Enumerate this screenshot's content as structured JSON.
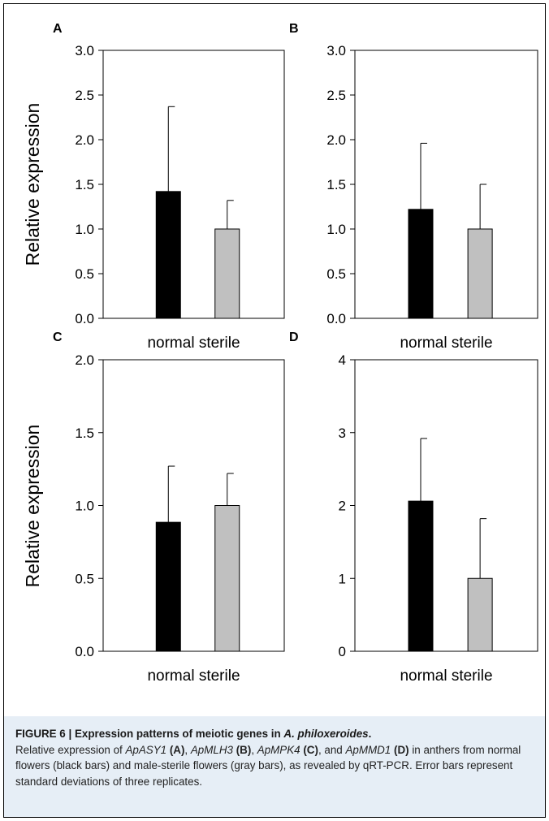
{
  "figure_label": "FIGURE 6",
  "figure_title": "Expression patterns of meiotic genes in ",
  "figure_title_species": "A. philoxeroides",
  "figure_title_end": ".",
  "caption": {
    "t1": "Relative expression of ",
    "g1": "ApASY1",
    "r1": "(A)",
    "t2": ", ",
    "g2": "ApMLH3",
    "r2": "(B)",
    "t3": ", ",
    "g3": "ApMPK4",
    "r3": "(C)",
    "t4": ", and ",
    "g4": "ApMMD1",
    "r4": "(D)",
    "t5": " in anthers from normal flowers (black bars) and male-sterile flowers (gray bars), as revealed by qRT-PCR. Error bars represent standard deviations of three replicates."
  },
  "colors": {
    "normal": "#000000",
    "sterile": "#c0c0c0",
    "caption_bg": "#e6eef6"
  },
  "chart_data": [
    {
      "panel": "A",
      "type": "bar",
      "categories": [
        "normal",
        "sterile"
      ],
      "xlabel": "normal sterile",
      "ylabel": "Relative expression",
      "ylim": [
        0,
        3
      ],
      "yticks": [
        "0.0",
        "0.5",
        "1.0",
        "1.5",
        "2.0",
        "2.5",
        "3.0"
      ],
      "values": [
        1.42,
        1.0
      ],
      "errors": [
        0.95,
        0.32
      ],
      "grid": false
    },
    {
      "panel": "B",
      "type": "bar",
      "categories": [
        "normal",
        "sterile"
      ],
      "xlabel": "normal sterile",
      "ylabel": "",
      "ylim": [
        0,
        3
      ],
      "yticks": [
        "0.0",
        "0.5",
        "1.0",
        "1.5",
        "2.0",
        "2.5",
        "3.0"
      ],
      "values": [
        1.22,
        1.0
      ],
      "errors": [
        0.74,
        0.5
      ],
      "grid": false
    },
    {
      "panel": "C",
      "type": "bar",
      "categories": [
        "normal",
        "sterile"
      ],
      "xlabel": "normal sterile",
      "ylabel": "Relative expression",
      "ylim": [
        0,
        2
      ],
      "yticks": [
        "0.0",
        "0.5",
        "1.0",
        "1.5",
        "2.0"
      ],
      "values": [
        0.885,
        1.0
      ],
      "errors": [
        0.385,
        0.22
      ],
      "grid": false
    },
    {
      "panel": "D",
      "type": "bar",
      "categories": [
        "normal",
        "sterile"
      ],
      "xlabel": "normal sterile",
      "ylabel": "",
      "ylim": [
        0,
        4
      ],
      "yticks": [
        "0",
        "1",
        "2",
        "3",
        "4"
      ],
      "values": [
        2.06,
        1.0
      ],
      "errors": [
        0.86,
        0.82
      ],
      "grid": false
    }
  ]
}
